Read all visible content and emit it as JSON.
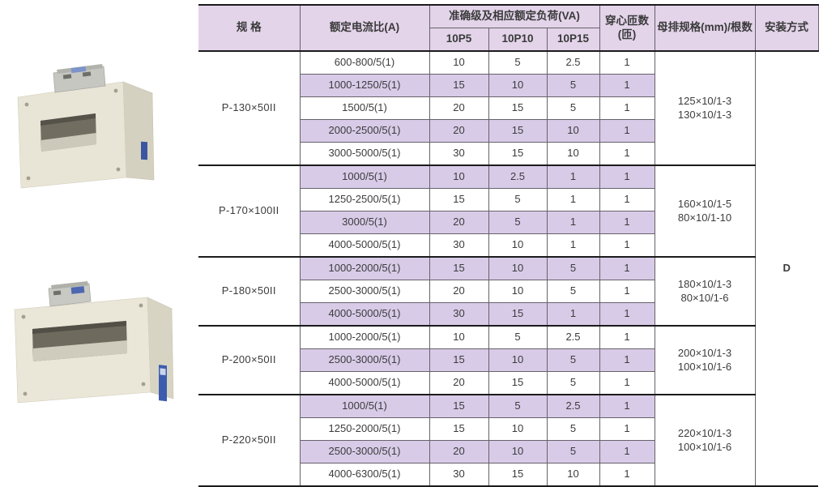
{
  "table": {
    "headers": {
      "spec": "规 格",
      "ratio": "额定电流比(A)",
      "accuracy_group": "准确级及相应额定负荷(VA)",
      "accuracy_cols": [
        "10P5",
        "10P10",
        "10P15"
      ],
      "turns": "穿心匝数(匝)",
      "busbar": "母排规格(mm)/根数",
      "install": "安装方式"
    },
    "install_value": "D",
    "groups": [
      {
        "spec": "P-130×50II",
        "busbar": [
          "125×10/1-3",
          "130×10/1-3"
        ],
        "rows": [
          [
            "600-800/5(1)",
            "10",
            "5",
            "2.5",
            "1"
          ],
          [
            "1000-1250/5(1)",
            "15",
            "10",
            "5",
            "1"
          ],
          [
            "1500/5(1)",
            "20",
            "15",
            "5",
            "1"
          ],
          [
            "2000-2500/5(1)",
            "20",
            "15",
            "10",
            "1"
          ],
          [
            "3000-5000/5(1)",
            "30",
            "15",
            "10",
            "1"
          ]
        ]
      },
      {
        "spec": "P-170×100II",
        "busbar": [
          "160×10/1-5",
          "80×10/1-10"
        ],
        "rows": [
          [
            "1000/5(1)",
            "10",
            "2.5",
            "1",
            "1"
          ],
          [
            "1250-2500/5(1)",
            "15",
            "5",
            "1",
            "1"
          ],
          [
            "3000/5(1)",
            "20",
            "5",
            "1",
            "1"
          ],
          [
            "4000-5000/5(1)",
            "30",
            "10",
            "1",
            "1"
          ]
        ]
      },
      {
        "spec": "P-180×50II",
        "busbar": [
          "180×10/1-3",
          "80×10/1-6"
        ],
        "rows": [
          [
            "1000-2000/5(1)",
            "15",
            "10",
            "5",
            "1"
          ],
          [
            "2500-3000/5(1)",
            "20",
            "10",
            "5",
            "1"
          ],
          [
            "4000-5000/5(1)",
            "30",
            "15",
            "1",
            "1"
          ]
        ]
      },
      {
        "spec": "P-200×50II",
        "busbar": [
          "200×10/1-3",
          "100×10/1-6"
        ],
        "rows": [
          [
            "1000-2000/5(1)",
            "10",
            "5",
            "2.5",
            "1"
          ],
          [
            "2500-3000/5(1)",
            "15",
            "10",
            "5",
            "1"
          ],
          [
            "4000-5000/5(1)",
            "20",
            "15",
            "5",
            "1"
          ]
        ]
      },
      {
        "spec": "P-220×50II",
        "busbar": [
          "220×10/1-3",
          "100×10/1-6"
        ],
        "rows": [
          [
            "1000/5(1)",
            "15",
            "5",
            "2.5",
            "1"
          ],
          [
            "1250-2000/5(1)",
            "15",
            "10",
            "5",
            "1"
          ],
          [
            "2500-3000/5(1)",
            "20",
            "10",
            "5",
            "1"
          ],
          [
            "4000-6300/5(1)",
            "30",
            "15",
            "10",
            "1"
          ]
        ]
      }
    ]
  },
  "colors": {
    "header_bg": "#e3d4ea",
    "stripe_bg": "#d8cbe8",
    "heavy_border": "#1b1b1b",
    "thin_border": "#66626a"
  }
}
